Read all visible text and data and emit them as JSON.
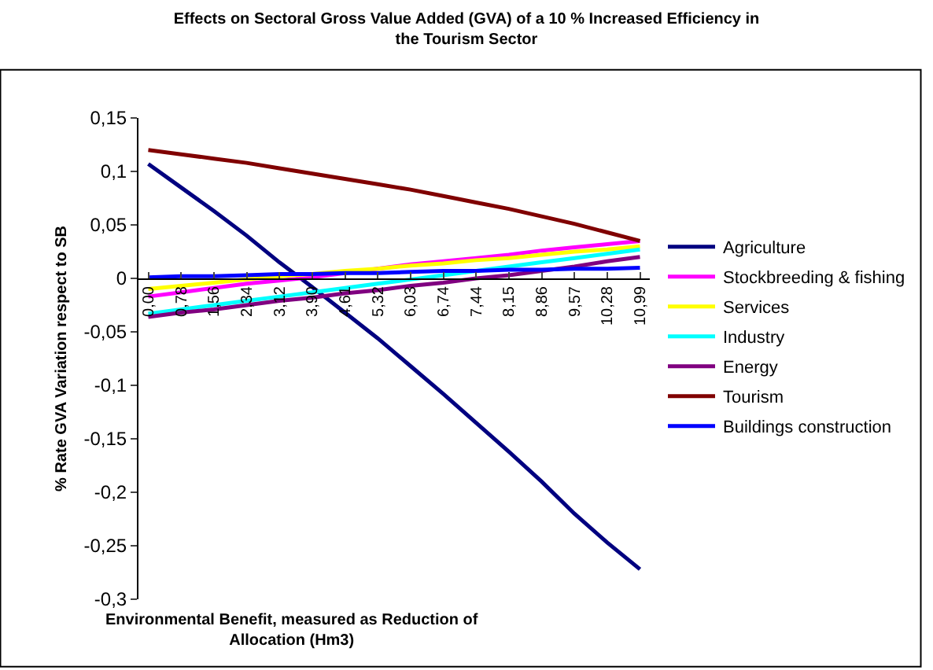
{
  "chart_data": {
    "type": "line",
    "title": "Effects on Sectoral Gross Value Added (GVA) of a 10 % Increased Efficiency in the Tourism Sector",
    "xlabel": "Environmental Benefit, measured as Reduction of Allocation (Hm3)",
    "ylabel": "% Rate GVA Variation respect to SB",
    "categories": [
      "0,00",
      "0,78",
      "1,56",
      "2,34",
      "3,12",
      "3,90",
      "4,61",
      "5,32",
      "6,03",
      "6,74",
      "7,44",
      "8,15",
      "8,86",
      "9,57",
      "10,28",
      "10,99"
    ],
    "series": [
      {
        "name": "Agriculture",
        "color": "#000080",
        "values": [
          0.107,
          0.085,
          0.063,
          0.04,
          0.015,
          -0.008,
          -0.032,
          -0.056,
          -0.082,
          -0.108,
          -0.135,
          -0.162,
          -0.19,
          -0.22,
          -0.247,
          -0.272
        ]
      },
      {
        "name": "Stockbreeding & fishing",
        "color": "#ff00ff",
        "values": [
          -0.017,
          -0.013,
          -0.009,
          -0.005,
          -0.002,
          0.001,
          0.005,
          0.009,
          0.013,
          0.016,
          0.019,
          0.022,
          0.026,
          0.029,
          0.032,
          0.035
        ]
      },
      {
        "name": "Services",
        "color": "#ffff00",
        "values": [
          -0.01,
          -0.007,
          -0.004,
          -0.001,
          0.002,
          0.004,
          0.007,
          0.009,
          0.012,
          0.014,
          0.017,
          0.019,
          0.022,
          0.025,
          0.027,
          0.03
        ]
      },
      {
        "name": "Industry",
        "color": "#00ffff",
        "values": [
          -0.033,
          -0.029,
          -0.025,
          -0.021,
          -0.017,
          -0.013,
          -0.009,
          -0.005,
          -0.001,
          0.003,
          0.007,
          0.011,
          0.015,
          0.019,
          0.023,
          0.027
        ]
      },
      {
        "name": "Energy",
        "color": "#800080",
        "values": [
          -0.036,
          -0.032,
          -0.029,
          -0.025,
          -0.021,
          -0.018,
          -0.014,
          -0.011,
          -0.007,
          -0.004,
          0,
          0.003,
          0.007,
          0.011,
          0.016,
          0.02
        ]
      },
      {
        "name": "Tourism",
        "color": "#800000",
        "values": [
          0.12,
          0.116,
          0.112,
          0.108,
          0.103,
          0.098,
          0.093,
          0.088,
          0.083,
          0.077,
          0.071,
          0.065,
          0.058,
          0.051,
          0.043,
          0.035
        ]
      },
      {
        "name": "Buildings construction",
        "color": "#0000ff",
        "values": [
          0.001,
          0.002,
          0.002,
          0.003,
          0.004,
          0.004,
          0.005,
          0.005,
          0.006,
          0.007,
          0.007,
          0.008,
          0.008,
          0.009,
          0.009,
          0.01
        ]
      }
    ],
    "ylim": [
      -0.3,
      0.15
    ],
    "yticks": [
      {
        "value": -0.3,
        "label": "-0,3"
      },
      {
        "value": -0.25,
        "label": "-0,25"
      },
      {
        "value": -0.2,
        "label": "-0,2"
      },
      {
        "value": -0.15,
        "label": "-0,15"
      },
      {
        "value": -0.1,
        "label": "-0,1"
      },
      {
        "value": -0.05,
        "label": "-0,05"
      },
      {
        "value": 0,
        "label": "0"
      },
      {
        "value": 0.05,
        "label": "0,05"
      },
      {
        "value": 0.1,
        "label": "0,1"
      },
      {
        "value": 0.15,
        "label": "0,15"
      }
    ],
    "grid": false,
    "legend": "right",
    "marker": "none",
    "line_style": "solid"
  }
}
